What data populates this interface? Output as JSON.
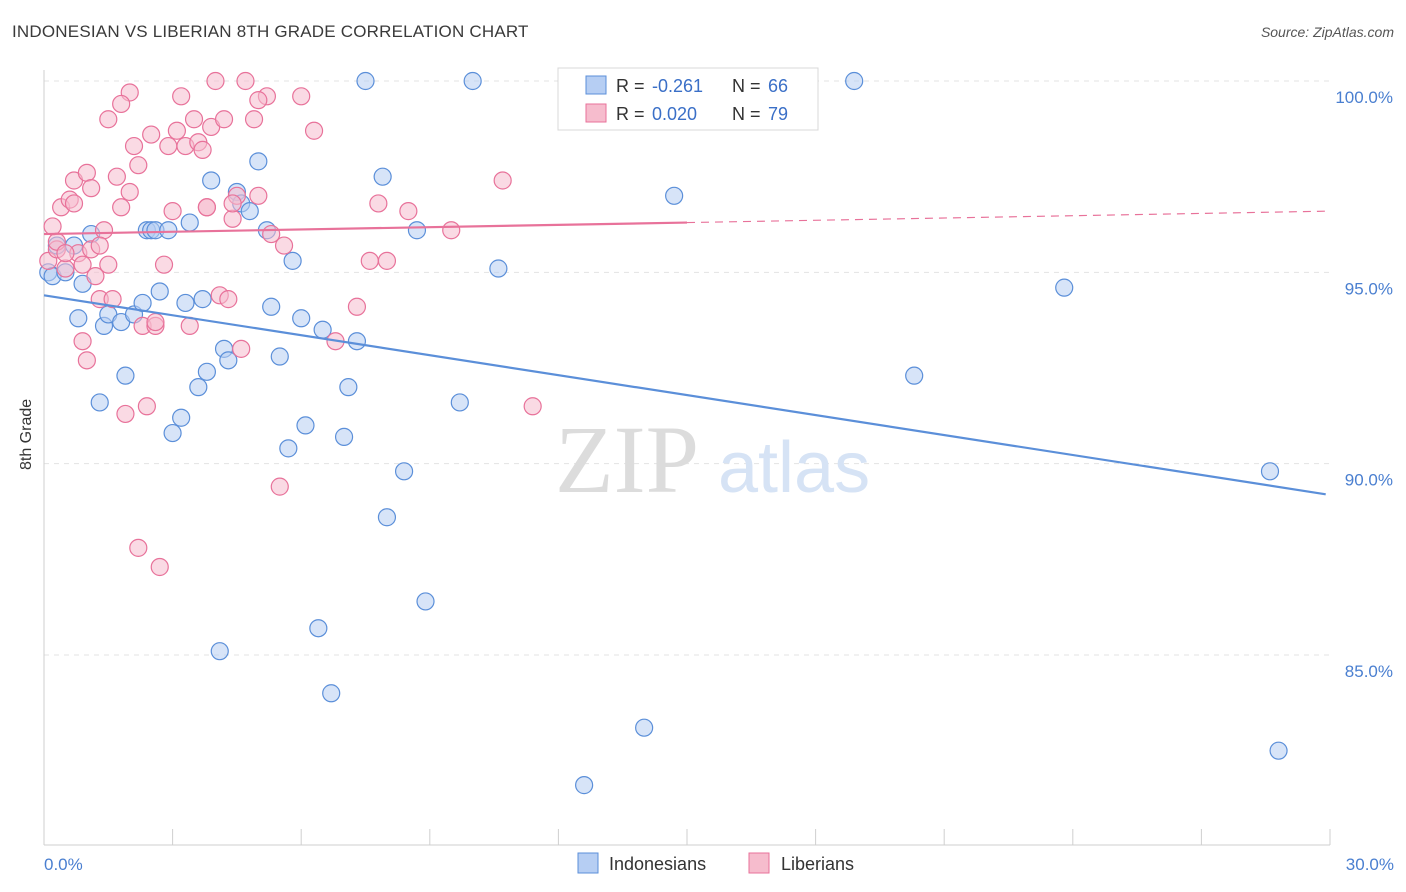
{
  "title": "INDONESIAN VS LIBERIAN 8TH GRADE CORRELATION CHART",
  "source": "Source: ZipAtlas.com",
  "watermark": {
    "zip": "ZIP",
    "atlas": "atlas"
  },
  "chart_data": {
    "type": "scatter",
    "title": "INDONESIAN VS LIBERIAN 8TH GRADE CORRELATION CHART",
    "xlabel": "",
    "ylabel": "8th Grade",
    "xlim": [
      0,
      30
    ],
    "ylim": [
      80.8,
      100.6
    ],
    "x_tick_labels": [
      {
        "value": 0,
        "label": "0.0%"
      },
      {
        "value": 30,
        "label": "30.0%"
      }
    ],
    "y_tick_labels": [
      {
        "value": 100,
        "label": "100.0%"
      },
      {
        "value": 95,
        "label": "95.0%"
      },
      {
        "value": 90,
        "label": "90.0%"
      },
      {
        "value": 85,
        "label": "85.0%"
      }
    ],
    "grid": true,
    "legend_position": "top-center",
    "series": [
      {
        "name": "Indonesians",
        "color": "#5b8fd9",
        "fill": "#b6cef3",
        "r_label": "R = ",
        "r_value": "-0.261",
        "n_label": "N = ",
        "n_value": "66",
        "trend": {
          "x0": 0.0,
          "y0": 94.4,
          "x1": 29.9,
          "y1": 89.2,
          "dashed_from": null
        },
        "points": [
          [
            0.1,
            95.0
          ],
          [
            0.2,
            94.9
          ],
          [
            0.3,
            95.7
          ],
          [
            0.5,
            95.0
          ],
          [
            0.7,
            95.7
          ],
          [
            0.8,
            93.8
          ],
          [
            0.9,
            94.7
          ],
          [
            1.1,
            96.0
          ],
          [
            1.3,
            91.6
          ],
          [
            1.4,
            93.6
          ],
          [
            1.5,
            93.9
          ],
          [
            1.8,
            93.7
          ],
          [
            1.9,
            92.3
          ],
          [
            2.1,
            93.9
          ],
          [
            2.3,
            94.2
          ],
          [
            2.4,
            96.1
          ],
          [
            2.5,
            96.1
          ],
          [
            2.6,
            96.1
          ],
          [
            2.7,
            94.5
          ],
          [
            2.9,
            96.1
          ],
          [
            3.0,
            90.8
          ],
          [
            3.2,
            91.2
          ],
          [
            3.3,
            94.2
          ],
          [
            3.4,
            96.3
          ],
          [
            3.6,
            92.0
          ],
          [
            3.7,
            94.3
          ],
          [
            3.8,
            92.4
          ],
          [
            3.9,
            97.4
          ],
          [
            4.1,
            85.1
          ],
          [
            4.2,
            93.0
          ],
          [
            4.3,
            92.7
          ],
          [
            4.5,
            97.1
          ],
          [
            4.6,
            96.8
          ],
          [
            4.8,
            96.6
          ],
          [
            5.0,
            97.9
          ],
          [
            5.2,
            96.1
          ],
          [
            5.3,
            94.1
          ],
          [
            5.5,
            92.8
          ],
          [
            5.7,
            90.4
          ],
          [
            5.8,
            95.3
          ],
          [
            6.0,
            93.8
          ],
          [
            6.1,
            91.0
          ],
          [
            6.4,
            85.7
          ],
          [
            6.5,
            93.5
          ],
          [
            6.7,
            84.0
          ],
          [
            7.0,
            90.7
          ],
          [
            7.1,
            92.0
          ],
          [
            7.3,
            93.2
          ],
          [
            7.5,
            100.0
          ],
          [
            7.9,
            97.5
          ],
          [
            8.0,
            88.6
          ],
          [
            8.4,
            89.8
          ],
          [
            8.7,
            96.1
          ],
          [
            8.9,
            86.4
          ],
          [
            9.7,
            91.6
          ],
          [
            10.0,
            100.0
          ],
          [
            10.6,
            95.1
          ],
          [
            12.6,
            81.6
          ],
          [
            12.9,
            100.0
          ],
          [
            14.0,
            83.1
          ],
          [
            14.7,
            97.0
          ],
          [
            18.9,
            100.0
          ],
          [
            20.3,
            92.3
          ],
          [
            23.8,
            94.6
          ],
          [
            28.6,
            89.8
          ],
          [
            28.8,
            82.5
          ]
        ]
      },
      {
        "name": "Liberians",
        "color": "#e8729a",
        "fill": "#f6bccd",
        "r_label": "R = ",
        "r_value": "0.020",
        "n_label": "N = ",
        "n_value": "79",
        "trend": {
          "x0": 0.0,
          "y0": 96.0,
          "x1": 30.0,
          "y1": 96.6,
          "dashed_from": 15.0
        },
        "points": [
          [
            0.1,
            95.3
          ],
          [
            0.2,
            96.2
          ],
          [
            0.3,
            95.6
          ],
          [
            0.4,
            96.7
          ],
          [
            0.5,
            95.1
          ],
          [
            0.6,
            96.9
          ],
          [
            0.7,
            97.4
          ],
          [
            0.8,
            95.5
          ],
          [
            0.9,
            93.2
          ],
          [
            1.0,
            92.7
          ],
          [
            1.0,
            97.6
          ],
          [
            1.1,
            95.6
          ],
          [
            1.2,
            94.9
          ],
          [
            1.3,
            94.3
          ],
          [
            1.4,
            96.1
          ],
          [
            1.5,
            95.2
          ],
          [
            1.6,
            94.3
          ],
          [
            1.7,
            97.5
          ],
          [
            1.8,
            96.7
          ],
          [
            1.9,
            91.3
          ],
          [
            2.0,
            99.7
          ],
          [
            2.1,
            98.3
          ],
          [
            2.2,
            97.8
          ],
          [
            2.3,
            93.6
          ],
          [
            2.4,
            91.5
          ],
          [
            2.5,
            98.6
          ],
          [
            2.6,
            93.6
          ],
          [
            2.7,
            87.3
          ],
          [
            2.8,
            95.2
          ],
          [
            2.9,
            98.3
          ],
          [
            3.0,
            96.6
          ],
          [
            3.1,
            98.7
          ],
          [
            3.2,
            99.6
          ],
          [
            3.3,
            98.3
          ],
          [
            3.4,
            93.6
          ],
          [
            3.6,
            98.4
          ],
          [
            3.7,
            98.2
          ],
          [
            3.8,
            96.7
          ],
          [
            3.9,
            98.8
          ],
          [
            4.0,
            100.0
          ],
          [
            4.1,
            94.4
          ],
          [
            4.2,
            99.0
          ],
          [
            4.3,
            94.3
          ],
          [
            4.4,
            96.4
          ],
          [
            4.5,
            97.0
          ],
          [
            4.6,
            93.0
          ],
          [
            4.7,
            100.0
          ],
          [
            4.9,
            99.0
          ],
          [
            5.0,
            97.0
          ],
          [
            5.2,
            99.6
          ],
          [
            5.3,
            96.0
          ],
          [
            5.5,
            89.4
          ],
          [
            5.6,
            95.7
          ],
          [
            6.0,
            99.6
          ],
          [
            6.3,
            98.7
          ],
          [
            6.8,
            93.2
          ],
          [
            7.3,
            94.1
          ],
          [
            7.6,
            95.3
          ],
          [
            7.8,
            96.8
          ],
          [
            8.0,
            95.3
          ],
          [
            8.5,
            96.6
          ],
          [
            9.5,
            96.1
          ],
          [
            10.7,
            97.4
          ],
          [
            11.4,
            91.5
          ],
          [
            1.1,
            97.2
          ],
          [
            1.5,
            99.0
          ],
          [
            1.8,
            99.4
          ],
          [
            0.7,
            96.8
          ],
          [
            2.2,
            87.8
          ],
          [
            3.5,
            99.0
          ],
          [
            0.3,
            95.8
          ],
          [
            0.9,
            95.2
          ],
          [
            1.3,
            95.7
          ],
          [
            2.0,
            97.1
          ],
          [
            2.6,
            93.7
          ],
          [
            3.8,
            96.7
          ],
          [
            4.4,
            96.8
          ],
          [
            5.0,
            99.5
          ],
          [
            0.5,
            95.5
          ]
        ]
      }
    ]
  }
}
